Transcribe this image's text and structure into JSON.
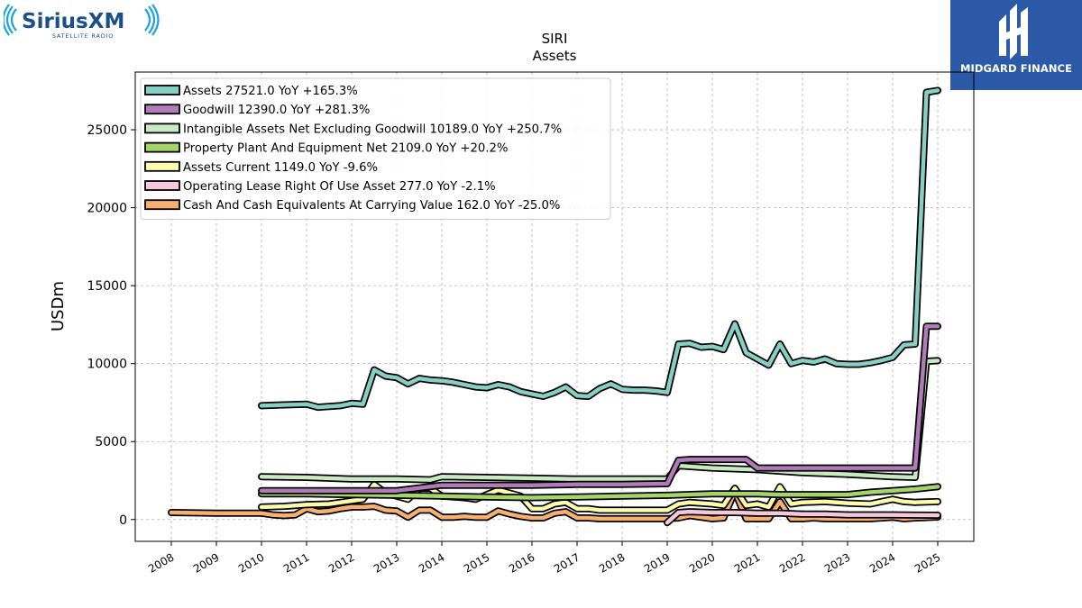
{
  "branding": {
    "sirius_name": "SiriusXM",
    "sirius_tagline": "SATELLITE RADIO",
    "midgard_name": "MIDGARD FINANCE"
  },
  "colors": {
    "assets": "#86cfc4",
    "goodwill": "#b07bb8",
    "intangibles": "#c9e9c3",
    "ppe": "#a5d46b",
    "current": "#fcfcaa",
    "lease": "#f6c8dc",
    "cash": "#f8b070",
    "midgard_bg": "#2d5aa8",
    "sirius_blue": "#1b4f8a"
  },
  "chart_data": {
    "type": "line",
    "title": "SIRI",
    "subtitle": "Assets",
    "xlabel": "",
    "ylabel": "USDm",
    "xlim": [
      2007.2,
      2025.8
    ],
    "ylim": [
      -1400,
      28700
    ],
    "x_ticks": [
      2008,
      2009,
      2010,
      2011,
      2012,
      2013,
      2014,
      2015,
      2016,
      2017,
      2018,
      2019,
      2020,
      2021,
      2022,
      2023,
      2024,
      2025
    ],
    "x_tick_labels": [
      "2008",
      "2009",
      "2010",
      "2011",
      "2012",
      "2013",
      "2014",
      "2015",
      "2016",
      "2017",
      "2018",
      "2019",
      "2020",
      "2021",
      "2022",
      "2023",
      "2024",
      "2025"
    ],
    "y_ticks": [
      0,
      5000,
      10000,
      15000,
      20000,
      25000
    ],
    "y_tick_labels": [
      "0",
      "5000",
      "10000",
      "15000",
      "20000",
      "25000"
    ],
    "grid": true,
    "legend_position": "top-left",
    "series": [
      {
        "key": "assets",
        "name": "Assets",
        "legend_label": "Assets  27521.0 YoY +165.3%",
        "points": [
          [
            2010.0,
            7300
          ],
          [
            2010.5,
            7350
          ],
          [
            2011.0,
            7400
          ],
          [
            2011.25,
            7200
          ],
          [
            2011.5,
            7250
          ],
          [
            2011.75,
            7300
          ],
          [
            2012.0,
            7450
          ],
          [
            2012.25,
            7400
          ],
          [
            2012.5,
            9600
          ],
          [
            2012.75,
            9200
          ],
          [
            2013.0,
            9100
          ],
          [
            2013.25,
            8700
          ],
          [
            2013.5,
            9050
          ],
          [
            2013.75,
            8950
          ],
          [
            2014.0,
            8900
          ],
          [
            2014.25,
            8800
          ],
          [
            2014.5,
            8650
          ],
          [
            2014.75,
            8500
          ],
          [
            2015.0,
            8450
          ],
          [
            2015.25,
            8650
          ],
          [
            2015.5,
            8500
          ],
          [
            2015.75,
            8200
          ],
          [
            2016.0,
            8050
          ],
          [
            2016.25,
            7900
          ],
          [
            2016.5,
            8150
          ],
          [
            2016.75,
            8500
          ],
          [
            2017.0,
            7950
          ],
          [
            2017.25,
            7900
          ],
          [
            2017.5,
            8400
          ],
          [
            2017.75,
            8700
          ],
          [
            2018.0,
            8350
          ],
          [
            2018.25,
            8300
          ],
          [
            2018.5,
            8300
          ],
          [
            2018.75,
            8250
          ],
          [
            2019.0,
            8150
          ],
          [
            2019.25,
            11250
          ],
          [
            2019.5,
            11300
          ],
          [
            2019.75,
            11050
          ],
          [
            2020.0,
            11100
          ],
          [
            2020.25,
            10900
          ],
          [
            2020.5,
            12550
          ],
          [
            2020.75,
            10700
          ],
          [
            2021.0,
            10300
          ],
          [
            2021.25,
            9900
          ],
          [
            2021.5,
            11250
          ],
          [
            2021.75,
            10000
          ],
          [
            2022.0,
            10200
          ],
          [
            2022.25,
            10100
          ],
          [
            2022.5,
            10300
          ],
          [
            2022.75,
            10000
          ],
          [
            2023.0,
            9950
          ],
          [
            2023.25,
            9950
          ],
          [
            2023.5,
            10050
          ],
          [
            2023.75,
            10200
          ],
          [
            2024.0,
            10400
          ],
          [
            2024.25,
            11200
          ],
          [
            2024.5,
            11250
          ],
          [
            2024.75,
            27400
          ],
          [
            2025.0,
            27521
          ]
        ]
      },
      {
        "key": "goodwill",
        "name": "Goodwill",
        "legend_label": "Goodwill  12390.0 YoY +281.3%",
        "points": [
          [
            2010.0,
            1850
          ],
          [
            2011.0,
            1850
          ],
          [
            2012.0,
            1850
          ],
          [
            2013.0,
            1850
          ],
          [
            2014.0,
            2200
          ],
          [
            2015.0,
            2200
          ],
          [
            2016.0,
            2200
          ],
          [
            2017.0,
            2250
          ],
          [
            2018.0,
            2250
          ],
          [
            2019.0,
            2300
          ],
          [
            2019.25,
            3800
          ],
          [
            2019.5,
            3850
          ],
          [
            2020.0,
            3850
          ],
          [
            2020.75,
            3850
          ],
          [
            2021.0,
            3300
          ],
          [
            2022.0,
            3300
          ],
          [
            2023.0,
            3300
          ],
          [
            2024.0,
            3300
          ],
          [
            2024.5,
            3300
          ],
          [
            2024.75,
            12390
          ],
          [
            2025.0,
            12390
          ]
        ]
      },
      {
        "key": "intangibles",
        "name": "Intangible Assets Net Excluding Goodwill",
        "legend_label": "Intangible Assets Net Excluding Goodwill  10189.0 YoY +250.7%",
        "points": [
          [
            2010.0,
            2750
          ],
          [
            2011.0,
            2700
          ],
          [
            2012.0,
            2600
          ],
          [
            2013.0,
            2600
          ],
          [
            2013.75,
            2550
          ],
          [
            2014.0,
            2750
          ],
          [
            2015.0,
            2700
          ],
          [
            2016.0,
            2650
          ],
          [
            2017.0,
            2600
          ],
          [
            2018.0,
            2600
          ],
          [
            2019.0,
            2600
          ],
          [
            2019.25,
            3450
          ],
          [
            2020.0,
            3300
          ],
          [
            2021.0,
            3200
          ],
          [
            2022.0,
            3000
          ],
          [
            2023.0,
            2900
          ],
          [
            2024.0,
            2750
          ],
          [
            2024.5,
            2700
          ],
          [
            2024.75,
            10150
          ],
          [
            2025.0,
            10189
          ]
        ]
      },
      {
        "key": "ppe",
        "name": "Property Plant And Equipment Net",
        "legend_label": "Property Plant And Equipment Net  2109.0 YoY +20.2%",
        "points": [
          [
            2010.0,
            1650
          ],
          [
            2011.0,
            1650
          ],
          [
            2012.0,
            1600
          ],
          [
            2013.0,
            1550
          ],
          [
            2014.0,
            1500
          ],
          [
            2015.0,
            1450
          ],
          [
            2016.0,
            1400
          ],
          [
            2017.0,
            1450
          ],
          [
            2018.0,
            1500
          ],
          [
            2019.0,
            1550
          ],
          [
            2020.0,
            1650
          ],
          [
            2021.0,
            1650
          ],
          [
            2021.5,
            1600
          ],
          [
            2022.0,
            1600
          ],
          [
            2023.0,
            1600
          ],
          [
            2023.5,
            1750
          ],
          [
            2024.0,
            1850
          ],
          [
            2024.5,
            1950
          ],
          [
            2025.0,
            2109
          ]
        ]
      },
      {
        "key": "current",
        "name": "Assets Current",
        "legend_label": "Assets Current  1149.0 YoY -9.6%",
        "points": [
          [
            2010.0,
            800
          ],
          [
            2010.5,
            850
          ],
          [
            2011.0,
            950
          ],
          [
            2011.5,
            1000
          ],
          [
            2012.0,
            1200
          ],
          [
            2012.25,
            1300
          ],
          [
            2012.5,
            2250
          ],
          [
            2012.75,
            1700
          ],
          [
            2013.0,
            1500
          ],
          [
            2013.25,
            1300
          ],
          [
            2013.5,
            2000
          ],
          [
            2013.75,
            2000
          ],
          [
            2014.0,
            1500
          ],
          [
            2014.5,
            1400
          ],
          [
            2014.75,
            1300
          ],
          [
            2015.0,
            1600
          ],
          [
            2015.25,
            1900
          ],
          [
            2015.5,
            1700
          ],
          [
            2015.75,
            1500
          ],
          [
            2016.0,
            700
          ],
          [
            2016.25,
            700
          ],
          [
            2016.5,
            1000
          ],
          [
            2016.75,
            1100
          ],
          [
            2017.0,
            700
          ],
          [
            2017.25,
            700
          ],
          [
            2017.5,
            600
          ],
          [
            2017.75,
            600
          ],
          [
            2018.0,
            600
          ],
          [
            2018.5,
            600
          ],
          [
            2019.0,
            600
          ],
          [
            2019.25,
            1000
          ],
          [
            2019.5,
            1100
          ],
          [
            2020.0,
            1000
          ],
          [
            2020.25,
            900
          ],
          [
            2020.5,
            2000
          ],
          [
            2020.75,
            900
          ],
          [
            2021.0,
            1000
          ],
          [
            2021.25,
            800
          ],
          [
            2021.5,
            2100
          ],
          [
            2021.75,
            1000
          ],
          [
            2022.0,
            1100
          ],
          [
            2022.5,
            1150
          ],
          [
            2023.0,
            1050
          ],
          [
            2023.5,
            1000
          ],
          [
            2024.0,
            1300
          ],
          [
            2024.25,
            1150
          ],
          [
            2024.5,
            1100
          ],
          [
            2025.0,
            1149
          ]
        ]
      },
      {
        "key": "lease",
        "name": "Operating Lease Right Of Use Asset",
        "legend_label": "Operating Lease Right Of Use Asset  277.0 YoY -2.1%",
        "points": [
          [
            2019.0,
            -200
          ],
          [
            2019.25,
            450
          ],
          [
            2019.5,
            500
          ],
          [
            2020.0,
            450
          ],
          [
            2020.5,
            450
          ],
          [
            2021.0,
            400
          ],
          [
            2021.5,
            400
          ],
          [
            2022.0,
            350
          ],
          [
            2022.5,
            350
          ],
          [
            2023.0,
            300
          ],
          [
            2023.5,
            300
          ],
          [
            2024.0,
            300
          ],
          [
            2024.5,
            283
          ],
          [
            2025.0,
            277
          ]
        ]
      },
      {
        "key": "cash",
        "name": "Cash And Cash Equivalents At Carrying Value",
        "legend_label": "Cash And Cash Equivalents At Carrying Value  162.0 YoY -25.0%",
        "points": [
          [
            2008.0,
            450
          ],
          [
            2009.0,
            400
          ],
          [
            2010.0,
            400
          ],
          [
            2010.25,
            300
          ],
          [
            2010.5,
            250
          ],
          [
            2010.75,
            300
          ],
          [
            2011.0,
            700
          ],
          [
            2011.25,
            500
          ],
          [
            2011.5,
            550
          ],
          [
            2011.75,
            700
          ],
          [
            2012.0,
            800
          ],
          [
            2012.25,
            800
          ],
          [
            2012.5,
            850
          ],
          [
            2012.75,
            600
          ],
          [
            2013.0,
            550
          ],
          [
            2013.25,
            150
          ],
          [
            2013.5,
            600
          ],
          [
            2013.75,
            600
          ],
          [
            2014.0,
            150
          ],
          [
            2014.25,
            150
          ],
          [
            2014.5,
            200
          ],
          [
            2014.75,
            150
          ],
          [
            2015.0,
            150
          ],
          [
            2015.25,
            550
          ],
          [
            2015.5,
            350
          ],
          [
            2015.75,
            200
          ],
          [
            2016.0,
            100
          ],
          [
            2016.25,
            100
          ],
          [
            2016.5,
            400
          ],
          [
            2016.75,
            500
          ],
          [
            2017.0,
            100
          ],
          [
            2017.25,
            100
          ],
          [
            2017.5,
            50
          ],
          [
            2017.75,
            50
          ],
          [
            2018.0,
            50
          ],
          [
            2018.5,
            50
          ],
          [
            2019.0,
            50
          ],
          [
            2019.25,
            100
          ],
          [
            2019.5,
            250
          ],
          [
            2020.0,
            50
          ],
          [
            2020.25,
            100
          ],
          [
            2020.5,
            1800
          ],
          [
            2020.75,
            50
          ],
          [
            2021.0,
            50
          ],
          [
            2021.25,
            50
          ],
          [
            2021.5,
            1150
          ],
          [
            2021.75,
            50
          ],
          [
            2022.0,
            50
          ],
          [
            2022.25,
            100
          ],
          [
            2022.5,
            50
          ],
          [
            2023.0,
            50
          ],
          [
            2023.5,
            50
          ],
          [
            2024.0,
            150
          ],
          [
            2024.25,
            50
          ],
          [
            2024.5,
            100
          ],
          [
            2025.0,
            162
          ]
        ]
      }
    ]
  }
}
